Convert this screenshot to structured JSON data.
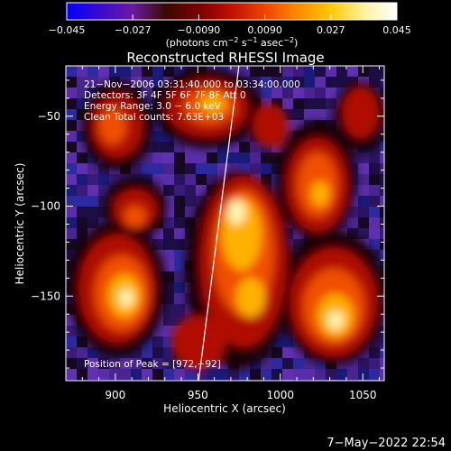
{
  "colorbar": {
    "tick_labels": [
      "−0.045",
      "−0.027",
      "−0.0090",
      "0.0090",
      "0.027",
      "0.045"
    ],
    "unit_prefix": "(photons cm",
    "unit_exp1": "−2",
    "unit_mid": " s",
    "unit_exp2": "−1",
    "unit_mid2": " asec",
    "unit_exp3": "−2",
    "unit_suffix": ")",
    "stops": [
      "#0000ff",
      "#3a0bd0",
      "#6a1aa0",
      "#3a0a00",
      "#7a0000",
      "#c01000",
      "#f04400",
      "#ff8a00",
      "#ffc800",
      "#fff2a0",
      "#ffffff"
    ]
  },
  "plot": {
    "title": "Reconstructed RHESSI Image",
    "info_lines": [
      "21−Nov−2006 03:31:40.000 to 03:34:00.000",
      "Detectors: 3F 4F 5F 6F 7F 8F  Att 0",
      "Energy Range: 3.0 − 6.0 keV",
      "Clean    Total counts: 7.63E+03"
    ],
    "peak_label": "Position of Peak = [972,−92]",
    "xlabel": "Heliocentric X (arcsec)",
    "ylabel": "Heliocentric Y (arcsec)",
    "xticks": [
      "900",
      "950",
      "1000",
      "1050"
    ],
    "xtick_values": [
      900,
      950,
      1000,
      1050
    ],
    "yticks": [
      "−50",
      "−100",
      "−150"
    ],
    "ytick_values": [
      -50,
      -100,
      -150
    ],
    "xlim": [
      870,
      1063
    ],
    "ylim": [
      -197,
      -22
    ]
  },
  "footer": {
    "timestamp": "7−May−2022 22:54"
  }
}
